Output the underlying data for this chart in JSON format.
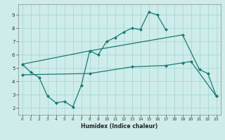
{
  "xlabel": "Humidex (Indice chaleur)",
  "xlim": [
    -0.5,
    23.5
  ],
  "ylim": [
    1.5,
    9.8
  ],
  "xticks": [
    0,
    1,
    2,
    3,
    4,
    5,
    6,
    7,
    8,
    9,
    10,
    11,
    12,
    13,
    14,
    15,
    16,
    17,
    18,
    19,
    20,
    21,
    22,
    23
  ],
  "yticks": [
    2,
    3,
    4,
    5,
    6,
    7,
    8,
    9
  ],
  "background_color": "#ceecea",
  "grid_color": "#a8d8d4",
  "line_color": "#1a7a72",
  "line1_x": [
    0,
    1,
    2,
    3,
    4,
    5,
    6,
    7,
    8,
    9,
    10,
    11,
    12,
    13,
    14,
    15,
    16,
    17
  ],
  "line1_y": [
    5.3,
    4.7,
    4.3,
    2.9,
    2.4,
    2.5,
    2.1,
    3.7,
    6.3,
    6.0,
    7.0,
    7.3,
    7.7,
    8.0,
    7.9,
    9.2,
    9.0,
    7.9
  ],
  "line2_x": [
    0,
    8,
    19,
    21,
    22,
    23
  ],
  "line2_y": [
    5.3,
    6.3,
    7.5,
    4.9,
    4.6,
    2.9
  ],
  "line3_x": [
    0,
    8,
    13,
    17,
    19,
    20,
    23
  ],
  "line3_y": [
    4.5,
    4.6,
    5.1,
    5.2,
    5.4,
    5.5,
    2.9
  ]
}
